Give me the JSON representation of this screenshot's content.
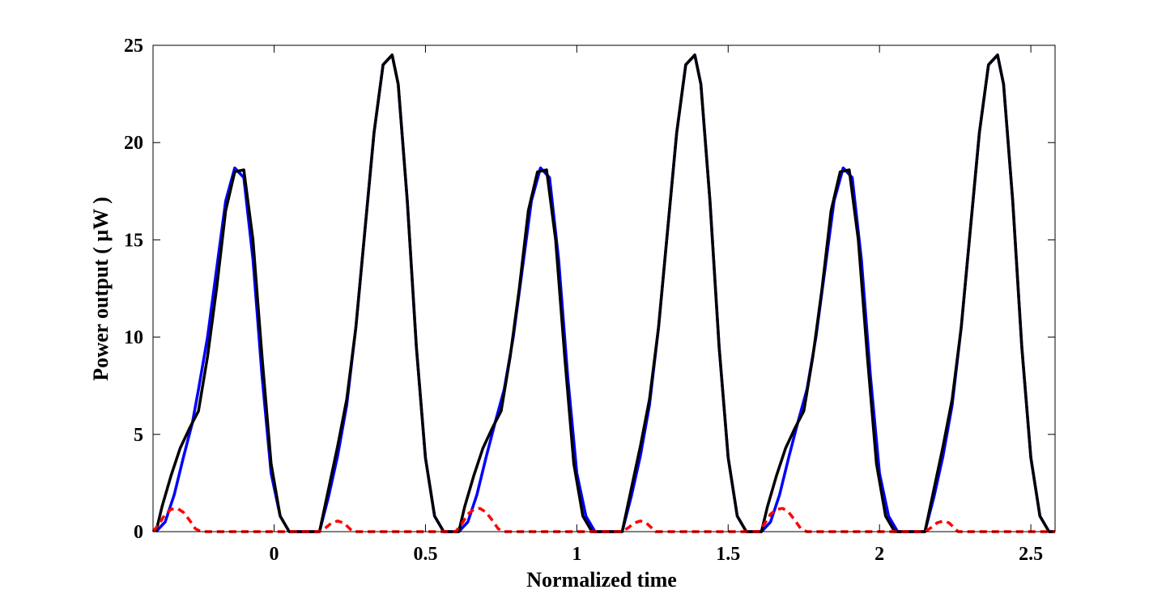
{
  "chart_data": {
    "type": "line",
    "title": "",
    "xlabel": "Normalized time",
    "ylabel": "Power output ( μW )",
    "xlim": [
      -0.4,
      2.58
    ],
    "ylim": [
      0,
      25
    ],
    "xticks": [
      0,
      0.5,
      1,
      1.5,
      2,
      2.5
    ],
    "xtick_labels": [
      "0",
      "0.5",
      "1",
      "1.5",
      "2",
      "2.5"
    ],
    "yticks": [
      0,
      5,
      10,
      15,
      20,
      25
    ],
    "ytick_labels": [
      "0",
      "5",
      "10",
      "15",
      "20",
      "25"
    ],
    "grid": false,
    "legend": "none",
    "series": [
      {
        "color": "#0000ff",
        "style": "solid",
        "x": [
          -0.39,
          -0.36,
          -0.33,
          -0.3,
          -0.27,
          -0.25,
          -0.22,
          -0.19,
          -0.16,
          -0.13,
          -0.1,
          -0.07,
          -0.04,
          -0.01,
          0.02,
          0.05,
          0.08,
          0.11,
          0.14,
          0.15,
          0.18,
          0.21,
          0.24,
          0.27,
          0.3,
          0.33,
          0.36,
          0.39,
          0.41,
          0.44,
          0.47,
          0.5,
          0.53,
          0.56,
          0.59,
          0.61,
          0.64,
          0.67,
          0.7,
          0.73,
          0.76,
          0.79,
          0.82,
          0.85,
          0.88,
          0.91,
          0.94,
          0.97,
          1.0,
          1.03,
          1.06,
          1.09,
          1.12,
          1.14,
          1.15,
          1.18,
          1.21,
          1.24,
          1.27,
          1.3,
          1.33,
          1.36,
          1.39,
          1.41,
          1.44,
          1.47,
          1.5,
          1.53,
          1.56,
          1.59,
          1.61,
          1.64,
          1.67,
          1.7,
          1.73,
          1.76,
          1.79,
          1.82,
          1.85,
          1.88,
          1.91,
          1.94,
          1.97,
          2.0,
          2.03,
          2.06,
          2.09,
          2.12,
          2.14,
          2.15,
          2.18,
          2.21,
          2.24,
          2.27,
          2.3,
          2.33,
          2.36,
          2.39,
          2.41,
          2.44,
          2.47,
          2.5,
          2.53,
          2.56,
          2.58
        ],
        "y": [
          0,
          0.5,
          1.9,
          3.8,
          5.6,
          7.3,
          10.0,
          13.5,
          17.0,
          18.7,
          18.2,
          14.0,
          8.0,
          3.0,
          0.8,
          0,
          0,
          0,
          0,
          0,
          1.8,
          3.9,
          6.5,
          10.5,
          15.5,
          20.5,
          24.0,
          24.5,
          23.0,
          17.0,
          9.5,
          3.8,
          0.8,
          0,
          0,
          0,
          0.5,
          1.9,
          3.8,
          5.6,
          7.3,
          10.0,
          13.5,
          17.0,
          18.7,
          18.2,
          14.0,
          8.0,
          3.0,
          0.8,
          0,
          0,
          0,
          0,
          0,
          1.8,
          3.9,
          6.5,
          10.5,
          15.5,
          20.5,
          24.0,
          24.5,
          23.0,
          17.0,
          9.5,
          3.8,
          0.8,
          0,
          0,
          0,
          0.5,
          1.9,
          3.8,
          5.6,
          7.3,
          10.0,
          13.5,
          17.0,
          18.7,
          18.2,
          14.0,
          8.0,
          3.0,
          0.8,
          0,
          0,
          0,
          0,
          0,
          1.8,
          3.9,
          6.5,
          10.5,
          15.5,
          20.5,
          24.0,
          24.5,
          23.0,
          17.0,
          9.5,
          3.8,
          0.8,
          0,
          0
        ]
      },
      {
        "color": "#000000",
        "style": "solid",
        "x": [
          -0.39,
          -0.37,
          -0.34,
          -0.31,
          -0.28,
          -0.25,
          -0.22,
          -0.19,
          -0.16,
          -0.13,
          -0.1,
          -0.07,
          -0.04,
          -0.01,
          0.02,
          0.05,
          0.08,
          0.11,
          0.14,
          0.15,
          0.18,
          0.21,
          0.24,
          0.27,
          0.3,
          0.33,
          0.36,
          0.39,
          0.41,
          0.44,
          0.47,
          0.5,
          0.53,
          0.56,
          0.59,
          0.61,
          0.63,
          0.66,
          0.69,
          0.72,
          0.75,
          0.78,
          0.81,
          0.84,
          0.87,
          0.9,
          0.93,
          0.96,
          0.99,
          1.02,
          1.05,
          1.08,
          1.11,
          1.14,
          1.15,
          1.18,
          1.21,
          1.24,
          1.27,
          1.3,
          1.33,
          1.36,
          1.39,
          1.41,
          1.44,
          1.47,
          1.5,
          1.53,
          1.56,
          1.59,
          1.61,
          1.63,
          1.66,
          1.69,
          1.72,
          1.75,
          1.78,
          1.81,
          1.84,
          1.87,
          1.9,
          1.93,
          1.96,
          1.99,
          2.02,
          2.05,
          2.08,
          2.11,
          2.14,
          2.15,
          2.18,
          2.21,
          2.24,
          2.27,
          2.3,
          2.33,
          2.36,
          2.39,
          2.41,
          2.44,
          2.47,
          2.5,
          2.53,
          2.56,
          2.58
        ],
        "y": [
          0,
          1.3,
          2.9,
          4.3,
          5.3,
          6.2,
          9.0,
          12.5,
          16.5,
          18.5,
          18.6,
          15.0,
          9.0,
          3.5,
          0.8,
          0,
          0,
          0,
          0,
          0,
          2.2,
          4.4,
          6.8,
          10.5,
          15.5,
          20.5,
          24.0,
          24.5,
          23.0,
          17.0,
          9.5,
          3.8,
          0.8,
          0,
          0,
          0,
          1.3,
          2.9,
          4.3,
          5.3,
          6.2,
          9.0,
          12.5,
          16.5,
          18.5,
          18.6,
          15.0,
          9.0,
          3.5,
          0.8,
          0,
          0,
          0,
          0,
          0,
          2.2,
          4.4,
          6.8,
          10.5,
          15.5,
          20.5,
          24.0,
          24.5,
          23.0,
          17.0,
          9.5,
          3.8,
          0.8,
          0,
          0,
          0,
          1.3,
          2.9,
          4.3,
          5.3,
          6.2,
          9.0,
          12.5,
          16.5,
          18.5,
          18.6,
          15.0,
          9.0,
          3.5,
          0.8,
          0,
          0,
          0,
          0,
          0,
          2.2,
          4.4,
          6.8,
          10.5,
          15.5,
          20.5,
          24.0,
          24.5,
          23.0,
          17.0,
          9.5,
          3.8,
          0.8,
          0,
          0
        ]
      },
      {
        "color": "#ff0000",
        "style": "dashed",
        "x": [
          -0.4,
          -0.38,
          -0.36,
          -0.34,
          -0.32,
          -0.3,
          -0.28,
          -0.26,
          -0.24,
          0.15,
          0.17,
          0.19,
          0.21,
          0.23,
          0.25,
          0.26,
          0.6,
          0.62,
          0.64,
          0.66,
          0.68,
          0.7,
          0.72,
          0.74,
          0.76,
          1.15,
          1.17,
          1.19,
          1.21,
          1.23,
          1.25,
          1.26,
          1.6,
          1.62,
          1.64,
          1.66,
          1.68,
          1.7,
          1.72,
          1.74,
          1.76,
          2.15,
          2.17,
          2.19,
          2.21,
          2.23,
          2.25,
          2.26,
          2.58
        ],
        "y": [
          0,
          0.4,
          0.9,
          1.15,
          1.2,
          1.0,
          0.6,
          0.15,
          0,
          0,
          0.2,
          0.45,
          0.55,
          0.45,
          0.15,
          0,
          0,
          0.4,
          0.9,
          1.15,
          1.2,
          1.0,
          0.6,
          0.15,
          0,
          0,
          0.2,
          0.45,
          0.55,
          0.45,
          0.15,
          0,
          0,
          0.4,
          0.9,
          1.15,
          1.2,
          1.0,
          0.6,
          0.15,
          0,
          0,
          0.2,
          0.45,
          0.55,
          0.45,
          0.15,
          0,
          0
        ]
      }
    ]
  }
}
